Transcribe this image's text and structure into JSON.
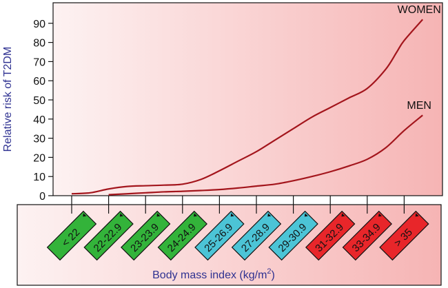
{
  "chart_data": {
    "type": "line",
    "ylabel": "Relative risk of T2DM",
    "xlabel_main": "Body mass index (kg/m",
    "xlabel_sup": "2",
    "xlabel_tail": ")",
    "ylim": [
      0,
      95
    ],
    "yticks": [
      "0",
      "10",
      "20",
      "30",
      "40",
      "50",
      "60",
      "70",
      "80",
      "90"
    ],
    "categories": [
      "< 22",
      "22-22.9",
      "23-23.9",
      "24-24.9",
      "25-26.9",
      "27-28.9",
      "29-30.9",
      "31-32.9",
      "33-34.9",
      "> 35"
    ],
    "category_colors": [
      "#33b33a",
      "#33b33a",
      "#33b33a",
      "#33b33a",
      "#4cc4d6",
      "#4cc4d6",
      "#4cc4d6",
      "#e8262a",
      "#e8262a",
      "#e8262a"
    ],
    "line_color": "#a3151c",
    "series": [
      {
        "name": "WOMEN",
        "x": [
          0,
          0.5,
          1,
          1.5,
          2,
          2.5,
          3,
          3.5,
          4,
          4.5,
          5,
          5.5,
          6,
          6.5,
          7,
          7.5,
          8,
          8.5,
          8.8,
          9,
          9.5
        ],
        "values": [
          1,
          1.5,
          3.5,
          4.8,
          5.2,
          5.5,
          6,
          8.5,
          13,
          18,
          23,
          29,
          35,
          41,
          46,
          51,
          56,
          66,
          75,
          81,
          92
        ]
      },
      {
        "name": "MEN",
        "x": [
          1,
          1.5,
          2,
          2.5,
          3,
          3.5,
          4,
          4.5,
          5,
          5.5,
          6,
          6.5,
          7,
          7.5,
          8,
          8.5,
          9,
          9.5
        ],
        "values": [
          0.5,
          1,
          1.5,
          2,
          2.3,
          2.7,
          3.2,
          4,
          5,
          6,
          7.8,
          10,
          12.5,
          15.5,
          19,
          25,
          34,
          42
        ]
      }
    ]
  }
}
